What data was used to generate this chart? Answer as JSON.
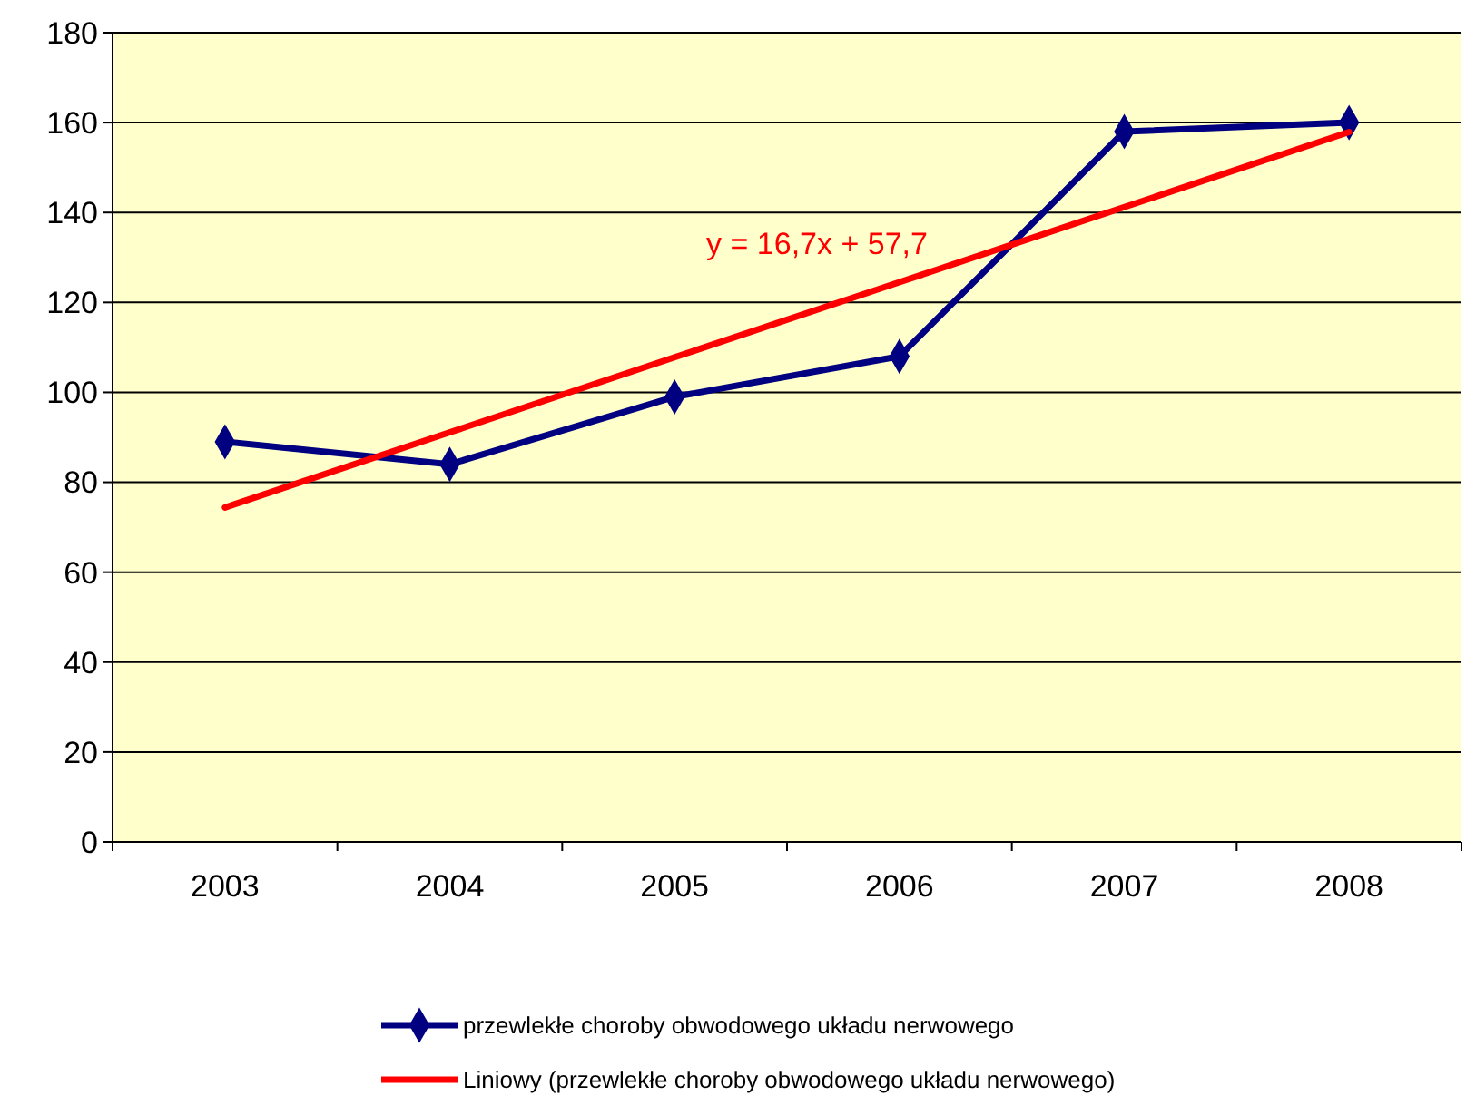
{
  "chart_data": {
    "type": "line",
    "categories": [
      "2003",
      "2004",
      "2005",
      "2006",
      "2007",
      "2008"
    ],
    "series": [
      {
        "name": "przewlekłe choroby obwodowego układu nerwowego",
        "color": "#000080",
        "values": [
          89,
          84,
          99,
          108,
          158,
          160
        ],
        "marker": "diamond"
      },
      {
        "name": "Liniowy (przewlekłe choroby obwodowego układu nerwowego)",
        "color": "#ff0000",
        "values": [
          74.4,
          91.1,
          107.8,
          124.5,
          141.2,
          157.9
        ],
        "marker": "none"
      }
    ],
    "annotations": [
      "y = 16,7x + 57,7"
    ],
    "ylim": [
      0,
      180
    ],
    "yticks": [
      0,
      20,
      40,
      60,
      80,
      100,
      120,
      140,
      160,
      180
    ],
    "grid": "y",
    "legend": "bottom"
  }
}
